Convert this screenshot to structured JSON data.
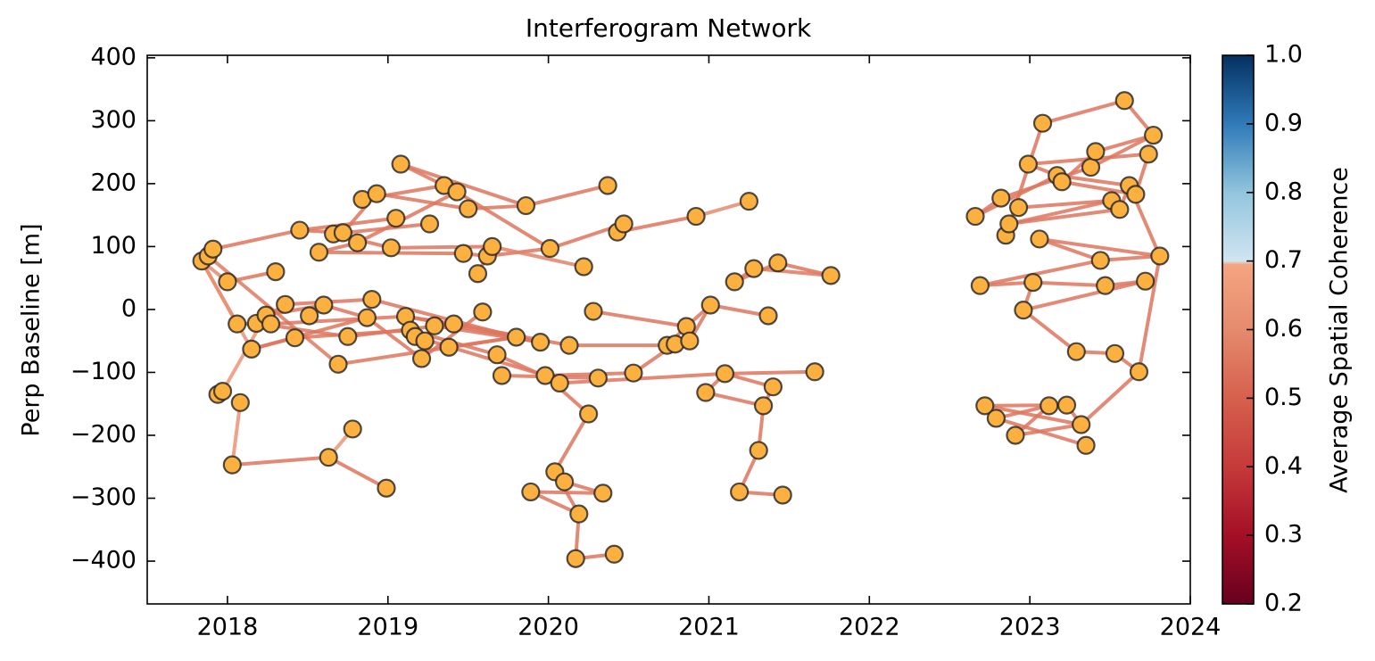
{
  "chart_data": {
    "type": "network",
    "title": "Interferogram Network",
    "ylabel": "Perp Baseline [m]",
    "colorbar_label": "Average Spatial Coherence",
    "xlim": [
      2017.5,
      2024
    ],
    "xticks": [
      2018,
      2019,
      2020,
      2021,
      2022,
      2023,
      2024
    ],
    "ylim": [
      -468,
      404
    ],
    "yticks": [
      {
        "value": -400,
        "label": "−400"
      },
      {
        "value": -300,
        "label": "−300"
      },
      {
        "value": -200,
        "label": "−200"
      },
      {
        "value": -100,
        "label": "−100"
      },
      0,
      100,
      200,
      300,
      400
    ],
    "clim": [
      0.2,
      1.0
    ],
    "cticks": [
      {
        "value": 0.2,
        "label": "0.2"
      },
      {
        "value": 0.3,
        "label": "0.3"
      },
      {
        "value": 0.4,
        "label": "0.4"
      },
      {
        "value": 0.5,
        "label": "0.5"
      },
      {
        "value": 0.6,
        "label": "0.6"
      },
      {
        "value": 0.7,
        "label": "0.7"
      },
      {
        "value": 0.8,
        "label": "0.8"
      },
      {
        "value": 0.9,
        "label": "0.9"
      },
      {
        "value": 1.0,
        "label": "1.0"
      }
    ],
    "colormap": [
      [
        0.2,
        "#67001f"
      ],
      [
        0.3,
        "#a50f26"
      ],
      [
        0.4,
        "#c53a3a"
      ],
      [
        0.5,
        "#d6604d"
      ],
      [
        0.6,
        "#e58a6e"
      ],
      [
        0.695,
        "#f4a582"
      ],
      [
        0.7,
        "#d1e5f0"
      ],
      [
        0.8,
        "#92c5de"
      ],
      [
        0.9,
        "#2f7ab8"
      ],
      [
        1.0,
        "#053061"
      ]
    ],
    "node_color": "#fbb040",
    "x": [
      2017.84,
      2017.88,
      2017.91,
      2018.0,
      2018.06,
      2017.94,
      2017.97,
      2018.08,
      2018.03,
      2018.15,
      2018.18,
      2018.24,
      2018.27,
      2018.3,
      2018.36,
      2018.42,
      2018.45,
      2018.51,
      2018.57,
      2018.6,
      2018.63,
      2018.66,
      2018.72,
      2018.75,
      2018.69,
      2018.78,
      2018.81,
      2018.84,
      2018.87,
      2018.9,
      2018.93,
      2018.99,
      2019.02,
      2019.05,
      2019.08,
      2019.11,
      2019.14,
      2019.17,
      2019.21,
      2019.23,
      2019.26,
      2019.29,
      2019.35,
      2019.38,
      2019.41,
      2019.43,
      2019.47,
      2019.5,
      2019.56,
      2019.59,
      2019.62,
      2019.65,
      2019.68,
      2019.71,
      2019.8,
      2019.86,
      2019.89,
      2019.95,
      2019.98,
      2020.01,
      2020.04,
      2020.07,
      2020.1,
      2020.13,
      2020.17,
      2020.19,
      2020.22,
      2020.25,
      2020.28,
      2020.31,
      2020.34,
      2020.37,
      2020.41,
      2020.43,
      2020.47,
      2020.53,
      2020.74,
      2020.79,
      2020.86,
      2020.88,
      2020.92,
      2020.98,
      2021.01,
      2021.1,
      2021.16,
      2021.19,
      2021.25,
      2021.28,
      2021.31,
      2021.34,
      2021.37,
      2021.4,
      2021.43,
      2021.46,
      2021.66,
      2021.76,
      2022.66,
      2022.69,
      2022.72,
      2022.79,
      2022.82,
      2022.85,
      2022.87,
      2022.91,
      2022.93,
      2022.96,
      2022.99,
      2023.02,
      2023.06,
      2023.08,
      2023.12,
      2023.17,
      2023.2,
      2023.23,
      2023.29,
      2023.32,
      2023.35,
      2023.38,
      2023.41,
      2023.44,
      2023.47,
      2023.51,
      2023.53,
      2023.56,
      2023.59,
      2023.62,
      2023.66,
      2023.68,
      2023.72,
      2023.74,
      2023.77,
      2023.81
    ],
    "values": [
      77,
      85,
      96,
      44,
      -23,
      -135,
      -130,
      -148,
      -247,
      -63,
      -22,
      -9,
      -23,
      60,
      8,
      -45,
      126,
      -10,
      91,
      7,
      -235,
      120,
      122,
      -43,
      -87,
      -190,
      106,
      175,
      -13,
      16,
      184,
      -284,
      98,
      145,
      231,
      -11,
      -33,
      -43,
      -78,
      -50,
      136,
      -26,
      197,
      -60,
      -23,
      187,
      89,
      160,
      57,
      -4,
      85,
      100,
      -72,
      -105,
      -44,
      165,
      -290,
      -52,
      -105,
      97,
      -258,
      -117,
      -274,
      -57,
      -396,
      -325,
      68,
      -166,
      -3,
      -109,
      -292,
      197,
      -389,
      123,
      136,
      -101,
      -57,
      -55,
      -27,
      -50,
      148,
      -132,
      7,
      -102,
      44,
      -290,
      172,
      65,
      -224,
      -153,
      -10,
      -123,
      74,
      -295,
      -99,
      54,
      148,
      38,
      -153,
      -173,
      177,
      118,
      136,
      -200,
      162,
      -1,
      231,
      43,
      112,
      296,
      -153,
      213,
      203,
      -152,
      -67,
      -183,
      -216,
      226,
      251,
      78,
      38,
      173,
      -70,
      159,
      332,
      197,
      183,
      -99,
      45,
      247,
      277,
      85
    ],
    "edges": [
      [
        0,
        2
      ],
      [
        0,
        3
      ],
      [
        0,
        4
      ],
      [
        2,
        16
      ],
      [
        0,
        9
      ],
      [
        1,
        24
      ],
      [
        3,
        13
      ],
      [
        4,
        12
      ],
      [
        5,
        6
      ],
      [
        6,
        11
      ],
      [
        7,
        8
      ],
      [
        8,
        20
      ],
      [
        20,
        25
      ],
      [
        20,
        31
      ],
      [
        9,
        15
      ],
      [
        9,
        28
      ],
      [
        10,
        14
      ],
      [
        10,
        23
      ],
      [
        11,
        19
      ],
      [
        12,
        35
      ],
      [
        14,
        29
      ],
      [
        15,
        36
      ],
      [
        16,
        22
      ],
      [
        16,
        33
      ],
      [
        18,
        26
      ],
      [
        18,
        46
      ],
      [
        19,
        28
      ],
      [
        21,
        32
      ],
      [
        21,
        40
      ],
      [
        22,
        30
      ],
      [
        23,
        44
      ],
      [
        24,
        54
      ],
      [
        26,
        45
      ],
      [
        27,
        42
      ],
      [
        28,
        38
      ],
      [
        29,
        54
      ],
      [
        30,
        47
      ],
      [
        32,
        51
      ],
      [
        34,
        42
      ],
      [
        34,
        55
      ],
      [
        35,
        44
      ],
      [
        35,
        57
      ],
      [
        36,
        52
      ],
      [
        37,
        58
      ],
      [
        38,
        49
      ],
      [
        39,
        41
      ],
      [
        41,
        57
      ],
      [
        43,
        54
      ],
      [
        44,
        63
      ],
      [
        45,
        59
      ],
      [
        46,
        50
      ],
      [
        47,
        55
      ],
      [
        48,
        51
      ],
      [
        50,
        59
      ],
      [
        51,
        66
      ],
      [
        52,
        61
      ],
      [
        53,
        69
      ],
      [
        55,
        71
      ],
      [
        56,
        65
      ],
      [
        56,
        70
      ],
      [
        58,
        75
      ],
      [
        60,
        62
      ],
      [
        61,
        83
      ],
      [
        62,
        70
      ],
      [
        63,
        76
      ],
      [
        64,
        65
      ],
      [
        64,
        72
      ],
      [
        60,
        65
      ],
      [
        60,
        67
      ],
      [
        58,
        67
      ],
      [
        68,
        78
      ],
      [
        73,
        80
      ],
      [
        75,
        77
      ],
      [
        76,
        78
      ],
      [
        77,
        79
      ],
      [
        78,
        82
      ],
      [
        79,
        82
      ],
      [
        80,
        86
      ],
      [
        81,
        89
      ],
      [
        82,
        90
      ],
      [
        83,
        94
      ],
      [
        84,
        92
      ],
      [
        84,
        87
      ],
      [
        85,
        88
      ],
      [
        85,
        93
      ],
      [
        87,
        95
      ],
      [
        88,
        89
      ],
      [
        89,
        91
      ],
      [
        83,
        91
      ],
      [
        92,
        95
      ],
      [
        74,
        59
      ],
      [
        81,
        83
      ],
      [
        96,
        100
      ],
      [
        96,
        111
      ],
      [
        97,
        107
      ],
      [
        97,
        119
      ],
      [
        98,
        113
      ],
      [
        98,
        115
      ],
      [
        99,
        110
      ],
      [
        99,
        116
      ],
      [
        103,
        115
      ],
      [
        103,
        110
      ],
      [
        100,
        117
      ],
      [
        101,
        109
      ],
      [
        102,
        121
      ],
      [
        105,
        107
      ],
      [
        105,
        114
      ],
      [
        105,
        128
      ],
      [
        106,
        111
      ],
      [
        106,
        129
      ],
      [
        107,
        120
      ],
      [
        108,
        131
      ],
      [
        109,
        124
      ],
      [
        110,
        113
      ],
      [
        112,
        118
      ],
      [
        112,
        126
      ],
      [
        114,
        122
      ],
      [
        115,
        127
      ],
      [
        117,
        130
      ],
      [
        118,
        130
      ],
      [
        119,
        131
      ],
      [
        120,
        128
      ],
      [
        121,
        123
      ],
      [
        122,
        127
      ],
      [
        123,
        125
      ],
      [
        124,
        130
      ],
      [
        125,
        131
      ],
      [
        126,
        129
      ],
      [
        127,
        131
      ],
      [
        102,
        123
      ],
      [
        104,
        121
      ],
      [
        111,
        125
      ],
      [
        108,
        119
      ],
      [
        113,
        115
      ]
    ],
    "coherence": [
      0.55,
      0.6,
      0.55,
      0.55,
      0.63,
      0.56,
      0.55,
      0.55,
      0.56,
      0.64,
      0.63,
      0.55,
      0.64,
      0.55,
      0.55,
      0.55,
      0.55,
      0.55,
      0.55,
      0.55,
      0.55,
      0.55,
      0.55,
      0.55,
      0.55,
      0.55,
      0.55,
      0.55,
      0.55,
      0.55,
      0.55,
      0.55,
      0.55,
      0.55,
      0.55,
      0.55,
      0.55,
      0.55,
      0.55,
      0.55,
      0.55,
      0.55,
      0.55,
      0.55,
      0.55,
      0.55,
      0.55,
      0.55,
      0.55,
      0.55,
      0.55,
      0.55,
      0.55,
      0.55,
      0.58,
      0.55,
      0.55,
      0.55,
      0.55,
      0.55,
      0.55,
      0.55,
      0.55,
      0.55,
      0.55,
      0.55,
      0.55,
      0.55,
      0.55,
      0.55,
      0.55,
      0.55,
      0.55,
      0.55,
      0.55,
      0.55,
      0.55,
      0.6,
      0.55,
      0.55,
      0.55,
      0.55,
      0.55,
      0.55,
      0.55,
      0.56,
      0.55,
      0.55,
      0.55,
      0.55,
      0.55,
      0.55,
      0.55,
      0.55,
      0.55,
      0.55,
      0.55,
      0.55,
      0.55,
      0.55,
      0.55,
      0.55,
      0.55,
      0.55,
      0.55,
      0.55,
      0.55,
      0.55,
      0.55,
      0.55,
      0.55,
      0.55,
      0.55,
      0.55,
      0.55,
      0.55,
      0.55,
      0.55,
      0.55,
      0.55,
      0.55,
      0.55,
      0.55,
      0.55,
      0.55,
      0.55,
      0.55,
      0.55,
      0.55,
      0.55,
      0.55,
      0.55,
      0.55,
      0.55
    ]
  }
}
